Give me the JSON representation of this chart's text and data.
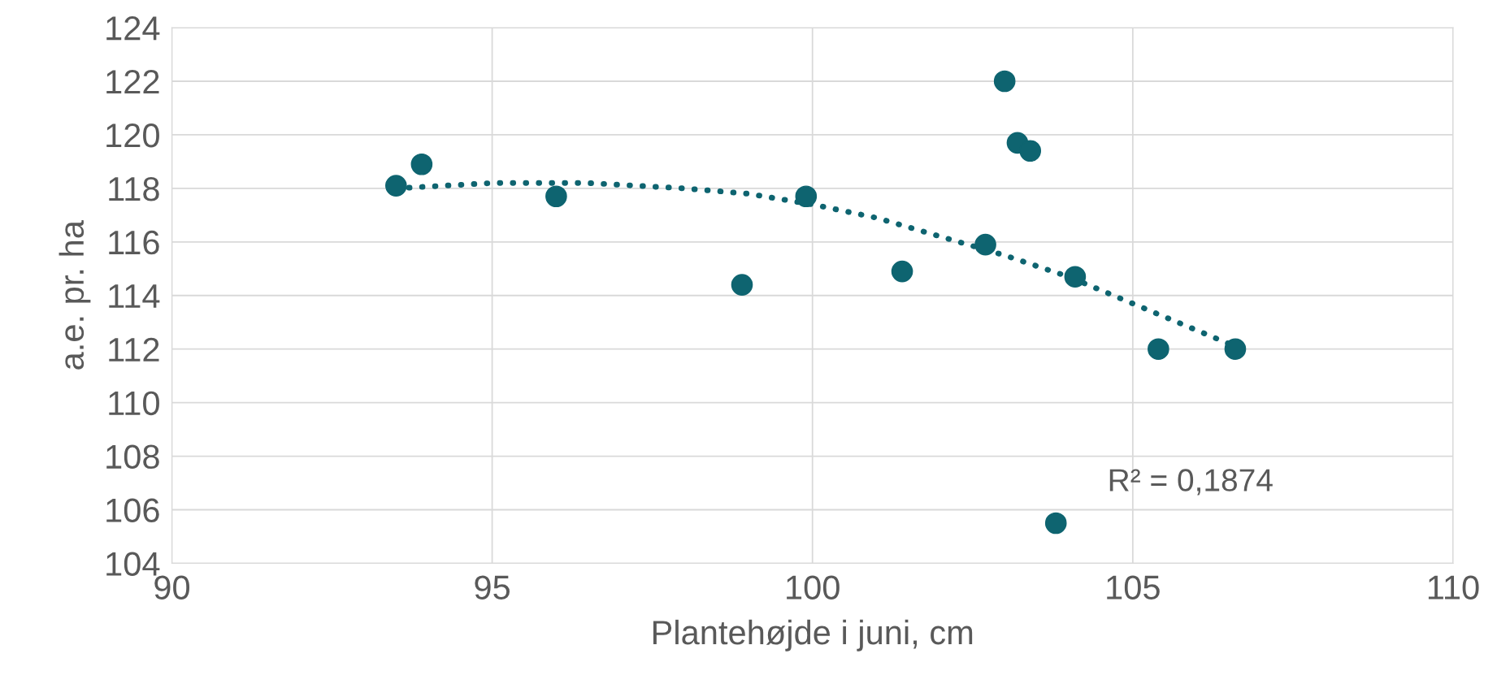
{
  "chart_data": {
    "type": "scatter",
    "xlabel": "Plantehøjde i juni, cm",
    "ylabel": "a.e. pr. ha",
    "xlim": [
      90,
      110
    ],
    "xticks": [
      90,
      95,
      100,
      105,
      110
    ],
    "ylim": [
      104,
      124
    ],
    "yticks": [
      104,
      106,
      108,
      110,
      112,
      114,
      116,
      118,
      120,
      122,
      124
    ],
    "grid": true,
    "marker": "circle",
    "series": [
      {
        "color": "#0e6470",
        "x": [
          93.5,
          93.9,
          96.0,
          98.9,
          99.9,
          101.4,
          102.7,
          103.0,
          103.2,
          103.4,
          104.1,
          103.8,
          105.4,
          106.6
        ],
        "values": [
          118.1,
          118.9,
          117.7,
          114.4,
          117.7,
          114.9,
          115.9,
          122.0,
          119.7,
          119.4,
          114.7,
          105.5,
          112.0,
          112.0
        ]
      },
      {
        "type": "line",
        "color": "#0e6470",
        "marker": "none",
        "line_style": "dotted",
        "x": [
          93.5,
          95,
          96.5,
          98,
          99,
          100,
          101,
          102,
          103,
          104,
          105,
          106,
          106.6
        ],
        "values": [
          118.0,
          118.2,
          118.2,
          118.0,
          117.8,
          117.4,
          116.9,
          116.2,
          115.5,
          114.7,
          113.7,
          112.7,
          112.1
        ]
      }
    ],
    "annotations": [
      "R² = 0,1874"
    ]
  }
}
